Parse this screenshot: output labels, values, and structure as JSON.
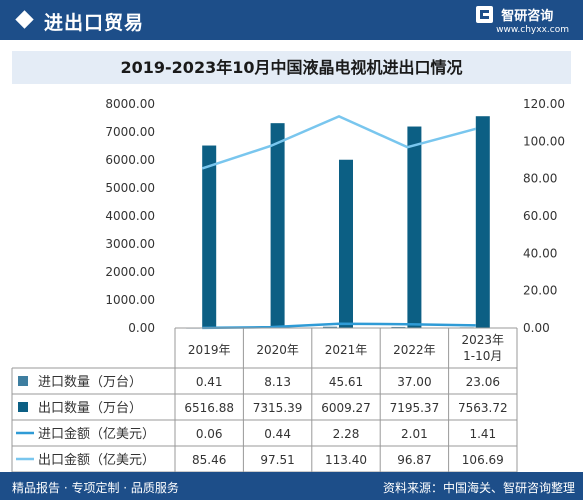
{
  "header": {
    "title": "进出口贸易",
    "brand_name": "智研咨询",
    "brand_url": "www.chyxx.com"
  },
  "chart_data": {
    "type": "bar",
    "title": "2019-2023年10月中国液晶电视机进出口情况",
    "categories": [
      "2019年",
      "2020年",
      "2021年",
      "2022年",
      "2023年\n1-10月"
    ],
    "left_axis": {
      "min": 0,
      "max": 8000,
      "ticks": [
        "8000.00",
        "7000.00",
        "6000.00",
        "5000.00",
        "4000.00",
        "3000.00",
        "2000.00",
        "1000.00",
        "0.00"
      ]
    },
    "right_axis": {
      "min": 0,
      "max": 120,
      "ticks": [
        "120.00",
        "100.00",
        "80.00",
        "60.00",
        "40.00",
        "20.00",
        "0.00"
      ]
    },
    "series": [
      {
        "name": "进口数量（万台）",
        "type": "bar",
        "axis": "left",
        "color": "#3e7ea0",
        "values": [
          0.41,
          8.13,
          45.61,
          37.0,
          23.06
        ],
        "labels": [
          "0.41",
          "8.13",
          "45.61",
          "37.00",
          "23.06"
        ]
      },
      {
        "name": "出口数量（万台）",
        "type": "bar",
        "axis": "left",
        "color": "#0c5f84",
        "values": [
          6516.88,
          7315.39,
          6009.27,
          7195.37,
          7563.72
        ],
        "labels": [
          "6516.88",
          "7315.39",
          "6009.27",
          "7195.37",
          "7563.72"
        ]
      },
      {
        "name": "进口金额（亿美元）",
        "type": "line",
        "axis": "right",
        "color": "#2f9bd6",
        "values": [
          0.06,
          0.44,
          2.28,
          2.01,
          1.41
        ],
        "labels": [
          "0.06",
          "0.44",
          "2.28",
          "2.01",
          "1.41"
        ]
      },
      {
        "name": "出口金额（亿美元）",
        "type": "line",
        "axis": "right",
        "color": "#79c6ee",
        "values": [
          85.46,
          97.51,
          113.4,
          96.87,
          106.69
        ],
        "labels": [
          "85.46",
          "97.51",
          "113.40",
          "96.87",
          "106.69"
        ]
      }
    ]
  },
  "footer": {
    "left": "精品报告 · 专项定制 · 品质服务",
    "right": "资料来源：中国海关、智研咨询整理"
  },
  "colors": {
    "brand": "#1d4e89",
    "title_bg": "#e4ecf6"
  }
}
